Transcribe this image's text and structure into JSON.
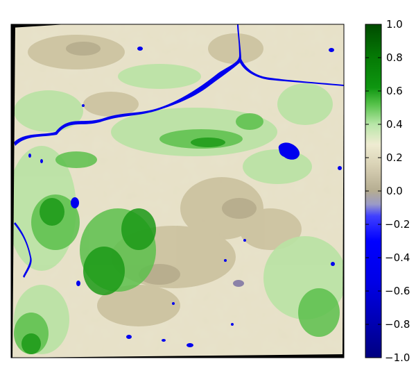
{
  "figure": {
    "type": "raster-map-with-colorbar",
    "colorbar": {
      "ticks": [
        {
          "value": 1.0,
          "label": "1.0"
        },
        {
          "value": 0.8,
          "label": "0.8"
        },
        {
          "value": 0.6,
          "label": "0.6"
        },
        {
          "value": 0.4,
          "label": "0.4"
        },
        {
          "value": 0.2,
          "label": "0.2"
        },
        {
          "value": 0.0,
          "label": "0.0"
        },
        {
          "value": -0.2,
          "label": "−0.2"
        },
        {
          "value": -0.4,
          "label": "−0.4"
        },
        {
          "value": -0.6,
          "label": "−0.6"
        },
        {
          "value": -0.8,
          "label": "−0.8"
        },
        {
          "value": -1.0,
          "label": "−1.0"
        }
      ],
      "range": [
        -1.0,
        1.0
      ],
      "colormap_stops": [
        {
          "value": -1.0,
          "color": "#000080"
        },
        {
          "value": -0.8,
          "color": "#0000b0"
        },
        {
          "value": -0.55,
          "color": "#0000e6"
        },
        {
          "value": -0.3,
          "color": "#0000ff"
        },
        {
          "value": -0.15,
          "color": "#4040ff"
        },
        {
          "value": -0.08,
          "color": "#9a9ac8"
        },
        {
          "value": 0.0,
          "color": "#b5ad91"
        },
        {
          "value": 0.15,
          "color": "#d8d1b4"
        },
        {
          "value": 0.28,
          "color": "#efecd2"
        },
        {
          "value": 0.4,
          "color": "#b8e6a8"
        },
        {
          "value": 0.52,
          "color": "#56c24a"
        },
        {
          "value": 0.62,
          "color": "#0e9610"
        },
        {
          "value": 0.8,
          "color": "#057a05"
        },
        {
          "value": 1.0,
          "color": "#004a00"
        }
      ]
    },
    "map": {
      "colors": {
        "base": "#e6e0c6",
        "bare": "#c9bf9c",
        "dark_bare": "#b3a98a",
        "light_veg": "#b9e3a4",
        "veg": "#5cc04c",
        "dense_veg": "#1c9a18",
        "water": "#0000ee",
        "border": "#000000"
      }
    }
  }
}
